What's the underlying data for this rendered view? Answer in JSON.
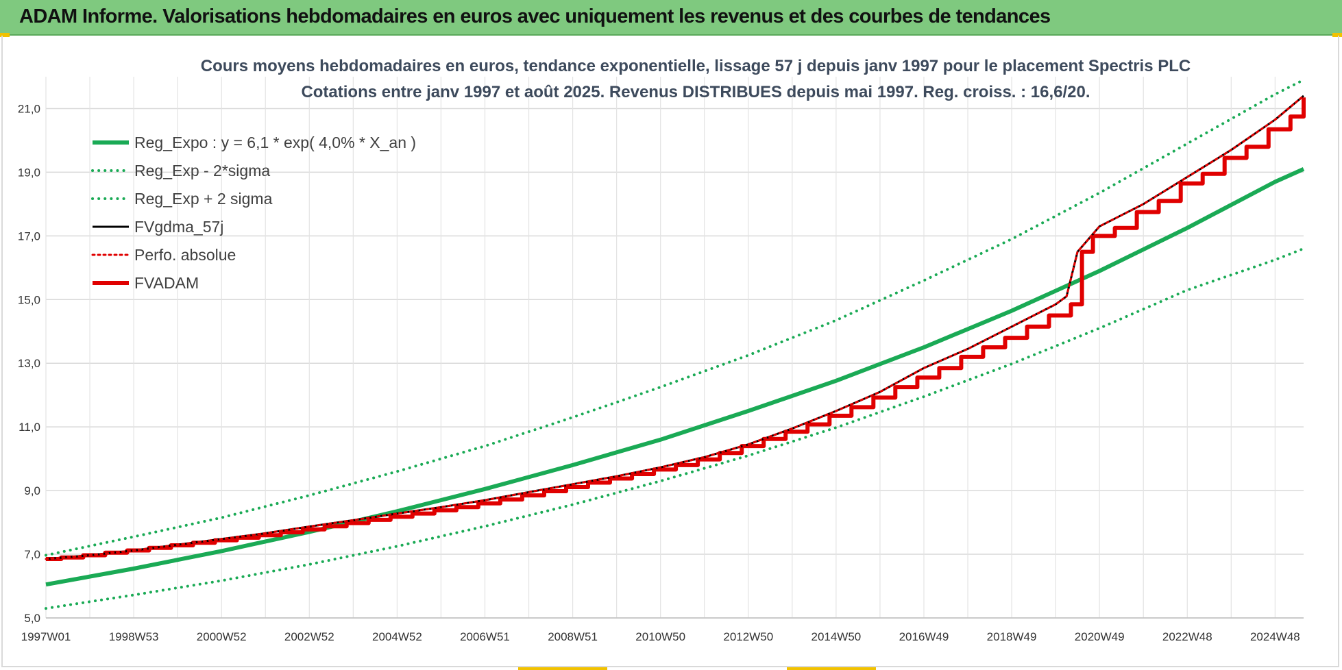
{
  "banner": {
    "title": "ADAM Informe. Valorisations hebdomadaires en euros avec uniquement les revenus et des courbes de tendances",
    "color": "#7fc97f"
  },
  "chart_data": {
    "type": "line",
    "title": [
      "Cours moyens hebdomadaires en euros, tendance exponentielle, lissage 57 j depuis janv 1997 pour le placement Spectris PLC",
      "Cotations entre janv 1997 et août 2025.  Revenus DISTRIBUES depuis mai 1997. Reg. croiss. : 16,6/20."
    ],
    "xlabel": "",
    "ylabel": "",
    "xlim": [
      1997.0,
      2025.65
    ],
    "ylim": [
      5.0,
      22.0
    ],
    "grid": true,
    "legend_position": "top-left",
    "y_ticks": [
      {
        "value": 5.0,
        "label": "5,0"
      },
      {
        "value": 7.0,
        "label": "7,0"
      },
      {
        "value": 9.0,
        "label": "9,0"
      },
      {
        "value": 11.0,
        "label": "11,0"
      },
      {
        "value": 13.0,
        "label": "13,0"
      },
      {
        "value": 15.0,
        "label": "15,0"
      },
      {
        "value": 17.0,
        "label": "17,0"
      },
      {
        "value": 19.0,
        "label": "19,0"
      },
      {
        "value": 21.0,
        "label": "21,0"
      }
    ],
    "x_ticks": [
      {
        "value": 1997.0,
        "label": "1997W01"
      },
      {
        "value": 1999.0,
        "label": "1998W53"
      },
      {
        "value": 2001.0,
        "label": "2000W52"
      },
      {
        "value": 2003.0,
        "label": "2002W52"
      },
      {
        "value": 2005.0,
        "label": "2004W52"
      },
      {
        "value": 2007.0,
        "label": "2006W51"
      },
      {
        "value": 2009.0,
        "label": "2008W51"
      },
      {
        "value": 2011.0,
        "label": "2010W50"
      },
      {
        "value": 2013.0,
        "label": "2012W50"
      },
      {
        "value": 2015.0,
        "label": "2014W50"
      },
      {
        "value": 2017.0,
        "label": "2016W49"
      },
      {
        "value": 2019.0,
        "label": "2018W49"
      },
      {
        "value": 2021.0,
        "label": "2020W49"
      },
      {
        "value": 2023.0,
        "label": "2022W48"
      },
      {
        "value": 2025.0,
        "label": "2024W48"
      }
    ],
    "series": [
      {
        "name": "Reg_Expo : y = 6,1 * exp( 4,0% *  X_an )",
        "color": "#1aaa55",
        "style": "solid",
        "width": 6,
        "x": [
          1997.0,
          1999.0,
          2001.0,
          2003.0,
          2005.0,
          2007.0,
          2009.0,
          2011.0,
          2013.0,
          2015.0,
          2017.0,
          2019.0,
          2021.0,
          2023.0,
          2025.0,
          2025.65
        ],
        "y": [
          6.05,
          6.55,
          7.1,
          7.7,
          8.35,
          9.05,
          9.8,
          10.6,
          11.5,
          12.45,
          13.5,
          14.65,
          15.9,
          17.25,
          18.7,
          19.1
        ]
      },
      {
        "name": "Reg_Exp - 2*sigma",
        "color": "#1aaa55",
        "style": "dotted",
        "width": 4,
        "x": [
          1997.0,
          1999.0,
          2001.0,
          2003.0,
          2005.0,
          2007.0,
          2009.0,
          2011.0,
          2013.0,
          2015.0,
          2017.0,
          2019.0,
          2021.0,
          2023.0,
          2025.0,
          2025.65
        ],
        "y": [
          5.3,
          5.72,
          6.17,
          6.68,
          7.25,
          7.88,
          8.56,
          9.3,
          10.1,
          10.98,
          11.95,
          12.98,
          14.1,
          15.3,
          16.25,
          16.6
        ]
      },
      {
        "name": "Reg_Exp + 2 sigma",
        "color": "#1aaa55",
        "style": "dotted",
        "width": 4,
        "x": [
          1997.0,
          1999.0,
          2001.0,
          2003.0,
          2005.0,
          2007.0,
          2009.0,
          2011.0,
          2013.0,
          2015.0,
          2017.0,
          2019.0,
          2021.0,
          2023.0,
          2025.0,
          2025.65
        ],
        "y": [
          6.97,
          7.55,
          8.15,
          8.85,
          9.6,
          10.4,
          11.3,
          12.25,
          13.25,
          14.35,
          15.6,
          16.9,
          18.35,
          19.9,
          21.45,
          21.9
        ]
      },
      {
        "name": "FVgdma_57j",
        "color": "#000000",
        "style": "solid",
        "width": 3,
        "x": [
          1997.0,
          1998.0,
          1999.0,
          2000.0,
          2001.0,
          2002.0,
          2003.0,
          2004.0,
          2005.0,
          2006.0,
          2007.0,
          2008.0,
          2009.0,
          2010.0,
          2011.0,
          2012.0,
          2013.0,
          2014.0,
          2015.0,
          2016.0,
          2017.0,
          2018.0,
          2019.0,
          2020.0,
          2020.25,
          2020.5,
          2021.0,
          2022.0,
          2023.0,
          2024.0,
          2025.0,
          2025.65
        ],
        "y": [
          6.85,
          6.97,
          7.12,
          7.3,
          7.48,
          7.66,
          7.87,
          8.07,
          8.28,
          8.48,
          8.7,
          8.95,
          9.2,
          9.45,
          9.73,
          10.05,
          10.45,
          10.95,
          11.5,
          12.1,
          12.85,
          13.45,
          14.15,
          14.85,
          15.1,
          16.5,
          17.3,
          18.0,
          18.85,
          19.7,
          20.65,
          21.4
        ]
      },
      {
        "name": "Perfo. absolue",
        "color": "#e00000",
        "style": "dotted",
        "width": 3,
        "x": [
          1997.0,
          1998.0,
          1999.0,
          2000.0,
          2001.0,
          2002.0,
          2003.0,
          2004.0,
          2005.0,
          2006.0,
          2007.0,
          2008.0,
          2009.0,
          2010.0,
          2011.0,
          2012.0,
          2013.0,
          2014.0,
          2015.0,
          2016.0,
          2017.0,
          2018.0,
          2019.0,
          2020.0,
          2020.25,
          2020.5,
          2021.0,
          2022.0,
          2023.0,
          2024.0,
          2025.0,
          2025.65
        ],
        "y": [
          6.85,
          6.97,
          7.12,
          7.3,
          7.48,
          7.66,
          7.87,
          8.07,
          8.28,
          8.48,
          8.7,
          8.95,
          9.2,
          9.45,
          9.73,
          10.05,
          10.45,
          10.95,
          11.5,
          12.1,
          12.85,
          13.45,
          14.15,
          14.85,
          15.1,
          16.5,
          17.3,
          18.0,
          18.85,
          19.7,
          20.65,
          21.4
        ]
      },
      {
        "name": "FVADAM",
        "color": "#e00000",
        "style": "step",
        "width": 6,
        "x": [
          1997.0,
          1997.35,
          1997.85,
          1998.35,
          1998.85,
          1999.35,
          1999.85,
          2000.35,
          2000.85,
          2001.35,
          2001.85,
          2002.35,
          2002.85,
          2003.35,
          2003.85,
          2004.35,
          2004.85,
          2005.35,
          2005.85,
          2006.35,
          2006.85,
          2007.35,
          2007.85,
          2008.35,
          2008.85,
          2009.35,
          2009.85,
          2010.35,
          2010.85,
          2011.35,
          2011.85,
          2012.35,
          2012.85,
          2013.35,
          2013.85,
          2014.35,
          2014.85,
          2015.35,
          2015.85,
          2016.35,
          2016.85,
          2017.35,
          2017.85,
          2018.35,
          2018.85,
          2019.35,
          2019.85,
          2020.35,
          2020.6,
          2020.85,
          2021.35,
          2021.85,
          2022.35,
          2022.85,
          2023.35,
          2023.85,
          2024.35,
          2024.85,
          2025.35,
          2025.65
        ],
        "y": [
          6.85,
          6.9,
          6.97,
          7.05,
          7.12,
          7.2,
          7.28,
          7.36,
          7.44,
          7.52,
          7.6,
          7.69,
          7.78,
          7.88,
          7.98,
          8.08,
          8.18,
          8.28,
          8.38,
          8.48,
          8.6,
          8.72,
          8.85,
          8.98,
          9.11,
          9.25,
          9.38,
          9.52,
          9.66,
          9.8,
          9.98,
          10.18,
          10.4,
          10.62,
          10.85,
          11.08,
          11.35,
          11.62,
          11.92,
          12.25,
          12.55,
          12.85,
          13.2,
          13.5,
          13.8,
          14.15,
          14.5,
          14.85,
          16.5,
          17.0,
          17.25,
          17.75,
          18.1,
          18.65,
          18.95,
          19.45,
          19.8,
          20.35,
          20.75,
          21.35
        ]
      }
    ]
  }
}
